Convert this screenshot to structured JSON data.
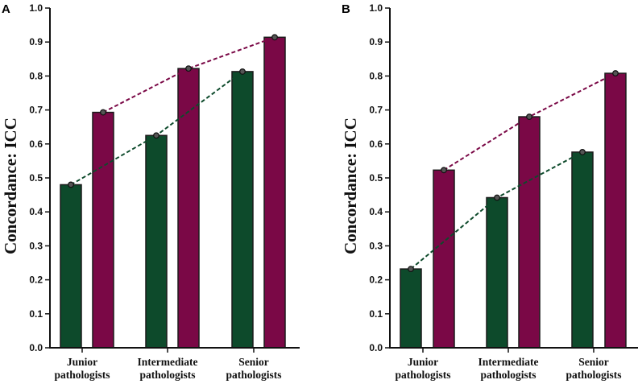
{
  "colors": {
    "green": "#0d4a2b",
    "purple": "#7a0846",
    "axis": "#111111"
  },
  "chart_data": [
    {
      "type": "bar",
      "panel": "A",
      "ylabel": "Concordance:  ICC",
      "ylim": [
        0,
        1.0
      ],
      "yticks": [
        "0.0",
        "0.1",
        "0.2",
        "0.3",
        "0.4",
        "0.5",
        "0.6",
        "0.7",
        "0.8",
        "0.9",
        "1.0"
      ],
      "categories": [
        [
          "Junior",
          "pathologists"
        ],
        [
          "Intermediate",
          "pathologists"
        ],
        [
          "Senior",
          "pathologists"
        ]
      ],
      "series": [
        {
          "name": "green",
          "values": [
            0.48,
            0.625,
            0.813
          ]
        },
        {
          "name": "purple",
          "values": [
            0.693,
            0.822,
            0.914
          ]
        }
      ]
    },
    {
      "type": "bar",
      "panel": "B",
      "ylabel": "Concordance:  ICC",
      "ylim": [
        0,
        1.0
      ],
      "yticks": [
        "0.0",
        "0.1",
        "0.2",
        "0.3",
        "0.4",
        "0.5",
        "0.6",
        "0.7",
        "0.8",
        "0.9",
        "1.0"
      ],
      "categories": [
        [
          "Junior",
          "pathologists"
        ],
        [
          "Intermediate",
          "pathologists"
        ],
        [
          "Senior",
          "pathologists"
        ]
      ],
      "series": [
        {
          "name": "green",
          "values": [
            0.232,
            0.442,
            0.576
          ]
        },
        {
          "name": "purple",
          "values": [
            0.523,
            0.68,
            0.808
          ]
        }
      ]
    }
  ]
}
